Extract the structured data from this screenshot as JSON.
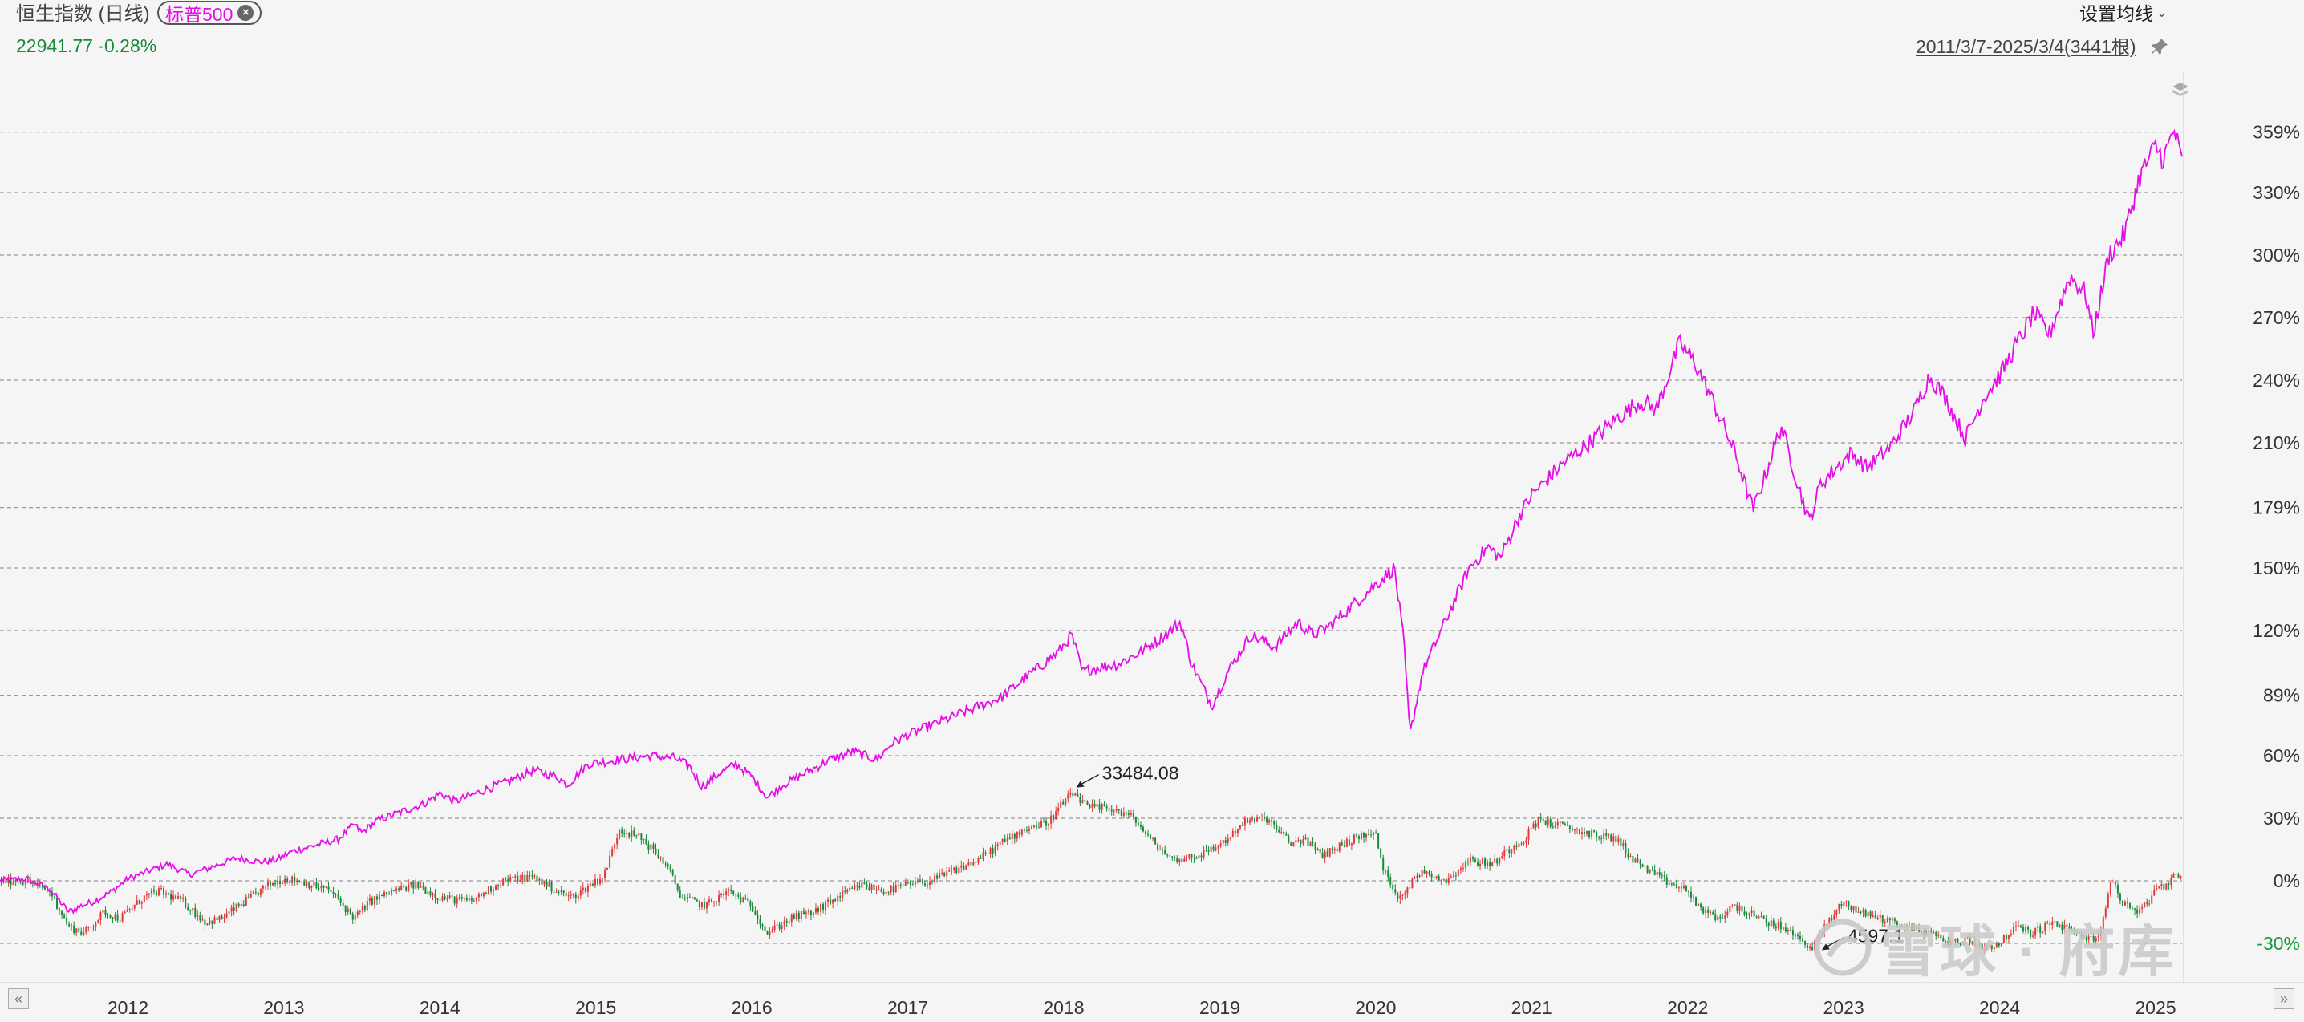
{
  "header": {
    "index_name": "恒生指数 (日线)",
    "compare_tag": "标普500",
    "price_change": "22941.77 -0.28%",
    "ma_setting": "设置均线",
    "range": "2011/3/7-2025/3/4(3441根)"
  },
  "watermark": "雪球 · 府库",
  "colors": {
    "sp500_line": "#e60ee6",
    "candle_up": "#e03a3a",
    "candle_down": "#1a8a3a",
    "price_text": "#1a8a3a",
    "negative_axis": "#1a9a3a",
    "grid": "#999999"
  },
  "chart_data": {
    "type": "line",
    "x_tick_labels": [
      "2012",
      "2013",
      "2014",
      "2015",
      "2016",
      "2017",
      "2018",
      "2019",
      "2020",
      "2021",
      "2022",
      "2023",
      "2024",
      "2025"
    ],
    "y_tick_labels": [
      "359%",
      "330%",
      "300%",
      "270%",
      "240%",
      "210%",
      "179%",
      "150%",
      "120%",
      "89%",
      "60%",
      "30%",
      "0%",
      "-30%"
    ],
    "y_tick_values": [
      359,
      330,
      300,
      270,
      240,
      210,
      179,
      150,
      120,
      89,
      60,
      30,
      0,
      -30
    ],
    "ylim": [
      -40,
      375
    ],
    "xlim": [
      2011.18,
      2025.17
    ],
    "grid": true,
    "annotations": [
      {
        "text": "33484.08",
        "x": 2018.07,
        "y": 44
      },
      {
        "text": "4597.1",
        "x": 2022.85,
        "y": -34
      }
    ],
    "series": [
      {
        "name": "标普500",
        "style": "line",
        "points": [
          [
            2011.18,
            0
          ],
          [
            2011.35,
            1
          ],
          [
            2011.5,
            -4
          ],
          [
            2011.62,
            -15
          ],
          [
            2011.7,
            -12
          ],
          [
            2011.78,
            -10
          ],
          [
            2011.9,
            -5
          ],
          [
            2012.0,
            1
          ],
          [
            2012.25,
            8
          ],
          [
            2012.4,
            3
          ],
          [
            2012.55,
            7
          ],
          [
            2012.7,
            11
          ],
          [
            2012.85,
            9
          ],
          [
            2012.95,
            10
          ],
          [
            2013.05,
            14
          ],
          [
            2013.35,
            20
          ],
          [
            2013.45,
            27
          ],
          [
            2013.5,
            23
          ],
          [
            2013.6,
            29
          ],
          [
            2013.75,
            33
          ],
          [
            2013.9,
            37
          ],
          [
            2014.0,
            42
          ],
          [
            2014.1,
            38
          ],
          [
            2014.3,
            44
          ],
          [
            2014.45,
            48
          ],
          [
            2014.6,
            53
          ],
          [
            2014.75,
            50
          ],
          [
            2014.82,
            46
          ],
          [
            2014.95,
            56
          ],
          [
            2015.15,
            58
          ],
          [
            2015.35,
            60
          ],
          [
            2015.5,
            59
          ],
          [
            2015.6,
            55
          ],
          [
            2015.68,
            45
          ],
          [
            2015.8,
            52
          ],
          [
            2015.9,
            56
          ],
          [
            2016.0,
            50
          ],
          [
            2016.1,
            40
          ],
          [
            2016.2,
            46
          ],
          [
            2016.35,
            52
          ],
          [
            2016.5,
            58
          ],
          [
            2016.65,
            62
          ],
          [
            2016.8,
            58
          ],
          [
            2016.9,
            66
          ],
          [
            2017.0,
            70
          ],
          [
            2017.2,
            76
          ],
          [
            2017.4,
            82
          ],
          [
            2017.6,
            88
          ],
          [
            2017.8,
            100
          ],
          [
            2017.97,
            110
          ],
          [
            2018.05,
            118
          ],
          [
            2018.12,
            100
          ],
          [
            2018.2,
            102
          ],
          [
            2018.35,
            104
          ],
          [
            2018.5,
            110
          ],
          [
            2018.65,
            118
          ],
          [
            2018.75,
            124
          ],
          [
            2018.82,
            104
          ],
          [
            2018.95,
            84
          ],
          [
            2019.05,
            100
          ],
          [
            2019.2,
            118
          ],
          [
            2019.35,
            112
          ],
          [
            2019.5,
            124
          ],
          [
            2019.6,
            118
          ],
          [
            2019.7,
            122
          ],
          [
            2019.85,
            132
          ],
          [
            2020.0,
            142
          ],
          [
            2020.12,
            150
          ],
          [
            2020.18,
            115
          ],
          [
            2020.22,
            70
          ],
          [
            2020.3,
            100
          ],
          [
            2020.45,
            125
          ],
          [
            2020.6,
            150
          ],
          [
            2020.72,
            160
          ],
          [
            2020.8,
            155
          ],
          [
            2020.92,
            175
          ],
          [
            2021.0,
            185
          ],
          [
            2021.2,
            200
          ],
          [
            2021.4,
            212
          ],
          [
            2021.55,
            222
          ],
          [
            2021.7,
            230
          ],
          [
            2021.8,
            226
          ],
          [
            2021.95,
            258
          ],
          [
            2022.05,
            248
          ],
          [
            2022.15,
            232
          ],
          [
            2022.3,
            206
          ],
          [
            2022.42,
            178
          ],
          [
            2022.5,
            195
          ],
          [
            2022.6,
            218
          ],
          [
            2022.7,
            192
          ],
          [
            2022.78,
            172
          ],
          [
            2022.85,
            190
          ],
          [
            2022.95,
            198
          ],
          [
            2023.05,
            205
          ],
          [
            2023.15,
            198
          ],
          [
            2023.3,
            208
          ],
          [
            2023.45,
            225
          ],
          [
            2023.55,
            242
          ],
          [
            2023.65,
            232
          ],
          [
            2023.78,
            212
          ],
          [
            2023.9,
            232
          ],
          [
            2024.0,
            242
          ],
          [
            2024.1,
            256
          ],
          [
            2024.22,
            272
          ],
          [
            2024.32,
            262
          ],
          [
            2024.45,
            290
          ],
          [
            2024.55,
            282
          ],
          [
            2024.6,
            262
          ],
          [
            2024.7,
            300
          ],
          [
            2024.8,
            310
          ],
          [
            2024.9,
            338
          ],
          [
            2025.0,
            352
          ],
          [
            2025.05,
            346
          ],
          [
            2025.12,
            360
          ],
          [
            2025.17,
            344
          ]
        ]
      },
      {
        "name": "恒生指数",
        "style": "candlestick",
        "points": [
          [
            2011.18,
            0
          ],
          [
            2011.35,
            0
          ],
          [
            2011.5,
            -5
          ],
          [
            2011.62,
            -22
          ],
          [
            2011.72,
            -25
          ],
          [
            2011.85,
            -15
          ],
          [
            2011.95,
            -18
          ],
          [
            2012.1,
            -8
          ],
          [
            2012.2,
            -5
          ],
          [
            2012.35,
            -10
          ],
          [
            2012.5,
            -20
          ],
          [
            2012.6,
            -18
          ],
          [
            2012.75,
            -10
          ],
          [
            2012.9,
            -2
          ],
          [
            2013.0,
            1
          ],
          [
            2013.1,
            0
          ],
          [
            2013.3,
            -5
          ],
          [
            2013.45,
            -18
          ],
          [
            2013.55,
            -10
          ],
          [
            2013.7,
            -5
          ],
          [
            2013.85,
            -2
          ],
          [
            2014.0,
            -8
          ],
          [
            2014.2,
            -10
          ],
          [
            2014.4,
            0
          ],
          [
            2014.6,
            2
          ],
          [
            2014.75,
            -5
          ],
          [
            2014.85,
            -8
          ],
          [
            2015.0,
            0
          ],
          [
            2015.05,
            2
          ],
          [
            2015.15,
            25
          ],
          [
            2015.3,
            20
          ],
          [
            2015.45,
            8
          ],
          [
            2015.55,
            -8
          ],
          [
            2015.7,
            -12
          ],
          [
            2015.85,
            -5
          ],
          [
            2016.0,
            -12
          ],
          [
            2016.1,
            -25
          ],
          [
            2016.25,
            -18
          ],
          [
            2016.4,
            -15
          ],
          [
            2016.55,
            -8
          ],
          [
            2016.7,
            -2
          ],
          [
            2016.85,
            -5
          ],
          [
            2017.0,
            -2
          ],
          [
            2017.15,
            0
          ],
          [
            2017.3,
            5
          ],
          [
            2017.45,
            10
          ],
          [
            2017.6,
            18
          ],
          [
            2017.75,
            25
          ],
          [
            2017.9,
            28
          ],
          [
            2018.0,
            38
          ],
          [
            2018.07,
            42
          ],
          [
            2018.15,
            35
          ],
          [
            2018.3,
            35
          ],
          [
            2018.45,
            30
          ],
          [
            2018.55,
            20
          ],
          [
            2018.7,
            10
          ],
          [
            2018.85,
            12
          ],
          [
            2018.95,
            15
          ],
          [
            2019.05,
            20
          ],
          [
            2019.15,
            28
          ],
          [
            2019.3,
            30
          ],
          [
            2019.45,
            18
          ],
          [
            2019.55,
            20
          ],
          [
            2019.65,
            12
          ],
          [
            2019.8,
            18
          ],
          [
            2019.92,
            22
          ],
          [
            2020.0,
            22
          ],
          [
            2020.05,
            5
          ],
          [
            2020.15,
            -8
          ],
          [
            2020.3,
            5
          ],
          [
            2020.45,
            0
          ],
          [
            2020.6,
            10
          ],
          [
            2020.75,
            8
          ],
          [
            2020.85,
            15
          ],
          [
            2020.95,
            20
          ],
          [
            2021.05,
            30
          ],
          [
            2021.1,
            28
          ],
          [
            2021.25,
            25
          ],
          [
            2021.4,
            22
          ],
          [
            2021.55,
            20
          ],
          [
            2021.65,
            10
          ],
          [
            2021.75,
            5
          ],
          [
            2021.85,
            0
          ],
          [
            2022.0,
            -5
          ],
          [
            2022.1,
            -15
          ],
          [
            2022.2,
            -18
          ],
          [
            2022.3,
            -12
          ],
          [
            2022.45,
            -18
          ],
          [
            2022.6,
            -22
          ],
          [
            2022.72,
            -28
          ],
          [
            2022.8,
            -32
          ],
          [
            2022.9,
            -20
          ],
          [
            2023.0,
            -10
          ],
          [
            2023.1,
            -15
          ],
          [
            2023.25,
            -18
          ],
          [
            2023.4,
            -22
          ],
          [
            2023.55,
            -25
          ],
          [
            2023.7,
            -30
          ],
          [
            2023.8,
            -28
          ],
          [
            2023.9,
            -32
          ],
          [
            2024.0,
            -30
          ],
          [
            2024.1,
            -22
          ],
          [
            2024.2,
            -25
          ],
          [
            2024.35,
            -20
          ],
          [
            2024.48,
            -25
          ],
          [
            2024.58,
            -28
          ],
          [
            2024.65,
            -25
          ],
          [
            2024.7,
            -5
          ],
          [
            2024.72,
            2
          ],
          [
            2024.78,
            -10
          ],
          [
            2024.9,
            -15
          ],
          [
            2025.0,
            -5
          ],
          [
            2025.08,
            -2
          ],
          [
            2025.12,
            5
          ],
          [
            2025.17,
            0
          ]
        ]
      }
    ]
  }
}
